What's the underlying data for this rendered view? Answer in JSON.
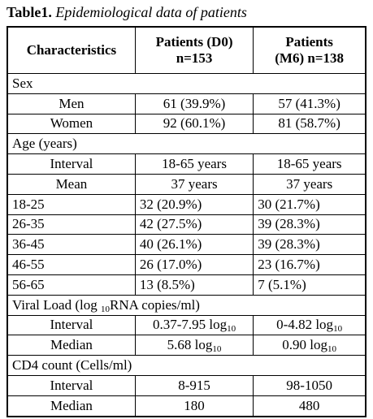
{
  "title": {
    "label": "Table1.",
    "text": "Epidemiological data of patients"
  },
  "table": {
    "header": [
      [
        "Characteristics"
      ],
      [
        "Patients (D0)",
        "n=153"
      ],
      [
        "Patients",
        "(M6) n=138"
      ]
    ],
    "rows": [
      [
        "Sex"
      ],
      [
        "Men",
        "61 (39.9%)",
        "57 (41.3%)"
      ],
      [
        "Women",
        "92 (60.1%)",
        "81 (58.7%)"
      ],
      [
        "Age (years)"
      ],
      [
        "Interval",
        "18-65 years",
        "18-65 years"
      ],
      [
        "Mean",
        "37 years",
        "37 years"
      ],
      [
        "18-25",
        "32 (20.9%)",
        "30 (21.7%)"
      ],
      [
        "26-35",
        "42 (27.5%)",
        "39 (28.3%)"
      ],
      [
        "36-45",
        "40 (26.1%)",
        "39 (28.3%)"
      ],
      [
        "46-55",
        "26 (17.0%)",
        "23 (16.7%)"
      ],
      [
        "56-65",
        "13 (8.5%)",
        "7 (5.1%)"
      ],
      [
        [
          "Viral Load (log ",
          "10",
          "RNA copies/ml)"
        ]
      ],
      [
        "Interval",
        [
          "0.37-7.95 log",
          "10"
        ],
        [
          "0-4.82 log",
          "10"
        ]
      ],
      [
        "Median",
        [
          "5.68 log",
          "10"
        ],
        [
          "0.90 log",
          "10"
        ]
      ],
      [
        "CD4 count (Cells/ml)"
      ],
      [
        "Interval",
        "8-915",
        "98-1050"
      ],
      [
        "Median",
        "180",
        "480"
      ]
    ]
  }
}
